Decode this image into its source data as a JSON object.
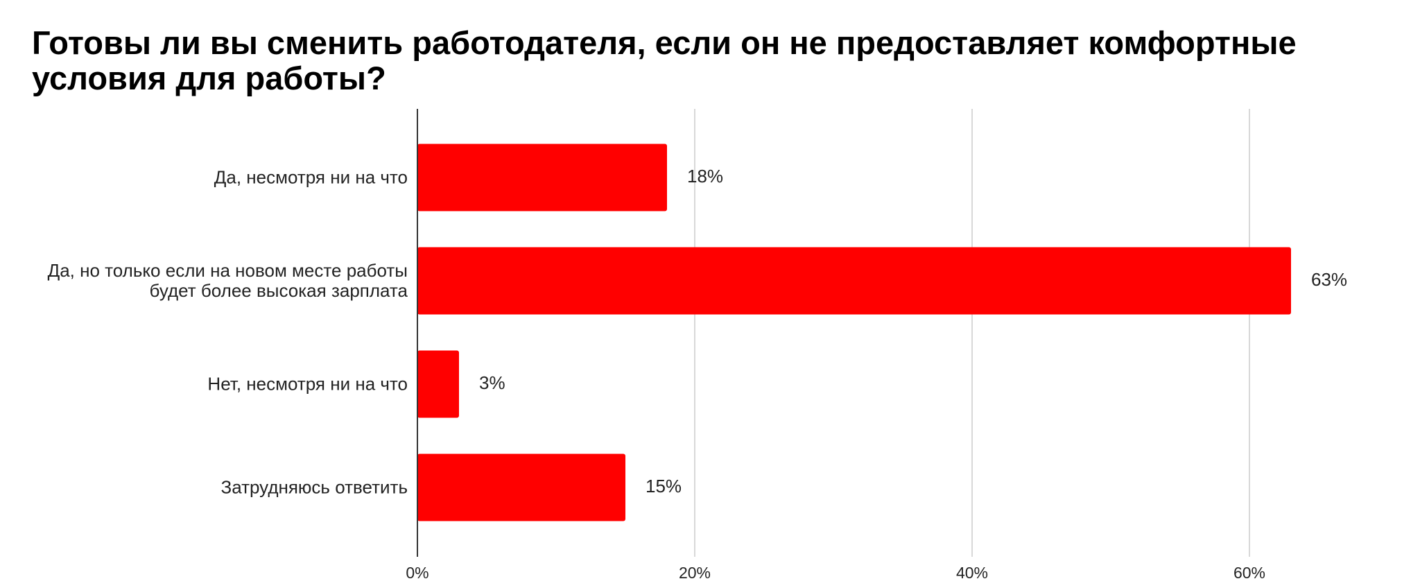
{
  "chart_data": {
    "type": "bar",
    "orientation": "horizontal",
    "title": "Готовы ли вы сменить работодателя, если он не предоставляет комфортные условия для работы?",
    "categories": [
      "Да, несмотря ни на что",
      "Да, но только если на новом месте работы будет более высокая зарплата",
      "Нет, несмотря ни на что",
      "Затрудняюсь ответить"
    ],
    "values": [
      18,
      63,
      3,
      15
    ],
    "value_labels": [
      "18%",
      "63%",
      "3%",
      "15%"
    ],
    "color": "#ff0000",
    "xlim": [
      0,
      70
    ],
    "xticks": [
      {
        "value": 0,
        "label": "0%"
      },
      {
        "value": 20,
        "label": "20%"
      },
      {
        "value": 40,
        "label": "40%"
      },
      {
        "value": 60,
        "label": "60%"
      }
    ],
    "grid": true
  }
}
